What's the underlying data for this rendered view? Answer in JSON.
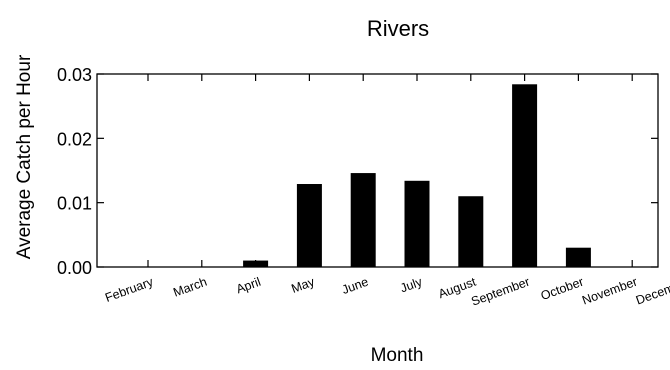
{
  "chart_data": {
    "type": "bar",
    "title": "Rivers",
    "xlabel": "Month",
    "ylabel": "Average Catch per Hour",
    "categories": [
      "February",
      "March",
      "April",
      "May",
      "June",
      "July",
      "August",
      "September",
      "October",
      "November",
      "December"
    ],
    "values": [
      0,
      0,
      0.001,
      0.0129,
      0.0146,
      0.0134,
      0.011,
      0.0284,
      0.003,
      0,
      0
    ],
    "ylim": [
      0,
      0.03
    ],
    "yticks": [
      "0.00",
      "0.01",
      "0.02",
      "0.03"
    ],
    "grid": false,
    "legend": "none",
    "bar_color": "#000000"
  }
}
